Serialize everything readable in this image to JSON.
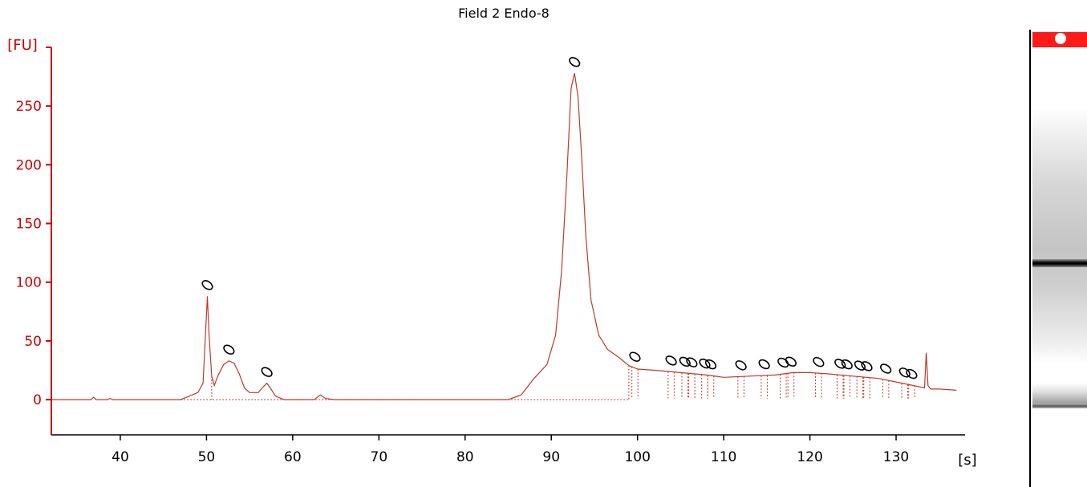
{
  "chart_data": {
    "type": "line",
    "title": "Field 2 Endo-8",
    "ylabel": "[FU]",
    "xlabel": "[s]",
    "xlim": [
      32,
      138
    ],
    "ylim": [
      -30,
      300
    ],
    "x_ticks": [
      40,
      50,
      60,
      70,
      80,
      90,
      100,
      110,
      120,
      130
    ],
    "y_ticks": [
      0,
      50,
      100,
      150,
      200,
      250
    ],
    "colors": {
      "axis": "#cc0000",
      "trace": "#c0392b",
      "baseline": "#c0392b"
    },
    "series": [
      {
        "x": [
          32,
          36.6,
          36.9,
          37.2,
          38.5,
          38.8,
          39.1,
          47,
          48,
          49,
          49.6,
          49.9,
          50.1,
          50.3,
          50.6,
          50.9,
          51.3,
          52,
          52.6,
          53.2,
          53.8,
          54.4,
          55,
          56,
          56.6,
          57,
          57.4,
          58,
          59,
          62.5,
          63.2,
          63.8,
          64.8,
          85,
          86.5,
          88,
          89.5,
          90.5,
          91.2,
          91.8,
          92.3,
          92.7,
          93.1,
          93.5,
          94,
          94.6,
          95.5,
          96.5,
          98,
          99,
          100,
          102,
          105,
          108,
          110,
          113,
          116,
          118,
          120,
          122,
          125,
          128,
          130,
          132,
          133.3,
          133.5,
          133.7,
          134,
          135,
          137
        ],
        "y": [
          0,
          0,
          2,
          0,
          0,
          1,
          0,
          0,
          3,
          6,
          14,
          58,
          88,
          55,
          20,
          12,
          20,
          30,
          33,
          31,
          22,
          10,
          6,
          6,
          11,
          14,
          10,
          3,
          0,
          0,
          4,
          1,
          0,
          0,
          4,
          18,
          30,
          55,
          110,
          190,
          265,
          278,
          258,
          210,
          140,
          85,
          55,
          43,
          35,
          29,
          26,
          25,
          23,
          21,
          19,
          20,
          21,
          23,
          23,
          22,
          20,
          18,
          15,
          12,
          10,
          40,
          12,
          9,
          9,
          8
        ]
      }
    ],
    "peak_markers": [
      50.1,
      52.6,
      57.0,
      92.7,
      99.7,
      103.9,
      105.5,
      106.3,
      107.8,
      108.5,
      112.0,
      114.7,
      116.9,
      117.8,
      121.0,
      123.5,
      124.3,
      125.8,
      126.6,
      128.8,
      131.0,
      131.8
    ],
    "marker_symbol": "0"
  }
}
